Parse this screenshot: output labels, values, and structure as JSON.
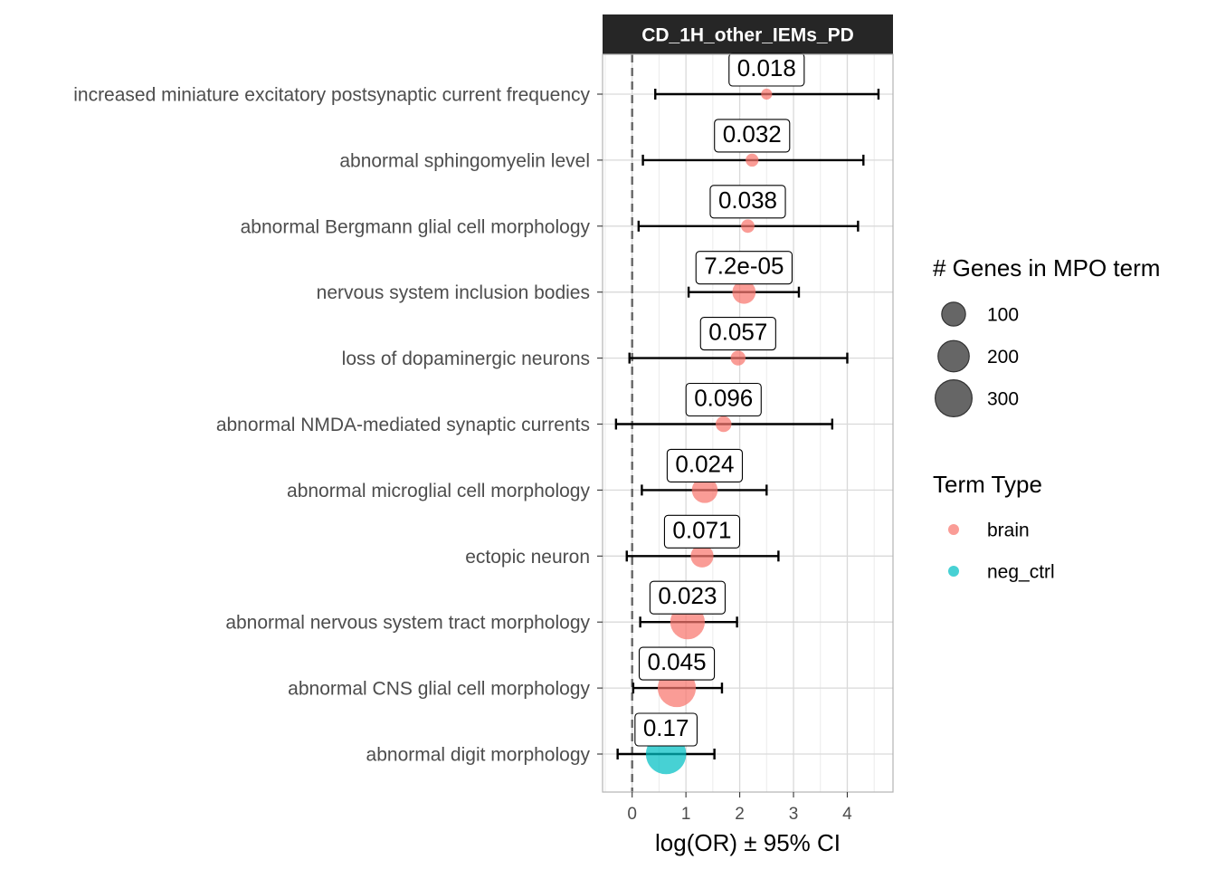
{
  "chart_data": {
    "type": "scatter",
    "facet_title": "CD_1H_other_IEMs_PD",
    "xlabel": "log(OR) ± 95% CI",
    "ylabel": "",
    "xlim": [
      -0.55,
      4.85
    ],
    "xticks": [
      0,
      1,
      2,
      3,
      4
    ],
    "grid": true,
    "reference_line_x": 0,
    "colors": {
      "brain": "#F8766D",
      "neg_ctrl": "#00BFC4"
    },
    "categories": [
      "increased miniature excitatory postsynaptic current frequency",
      "abnormal sphingomyelin level",
      "abnormal Bergmann glial cell morphology",
      "nervous system inclusion bodies",
      "loss of dopaminergic neurons",
      "abnormal NMDA-mediated synaptic currents",
      "abnormal microglial cell morphology",
      "ectopic neuron",
      "abnormal nervous system tract morphology",
      "abnormal CNS glial cell morphology",
      "abnormal digit morphology"
    ],
    "points": [
      {
        "term": "increased miniature excitatory postsynaptic current frequency",
        "logOR": 2.5,
        "ci_low": 0.43,
        "ci_high": 4.58,
        "pval": "0.018",
        "genes": 6,
        "type": "brain"
      },
      {
        "term": "abnormal sphingomyelin level",
        "logOR": 2.23,
        "ci_low": 0.2,
        "ci_high": 4.3,
        "pval": "0.032",
        "genes": 12,
        "type": "brain"
      },
      {
        "term": "abnormal Bergmann glial cell morphology",
        "logOR": 2.15,
        "ci_low": 0.12,
        "ci_high": 4.2,
        "pval": "0.038",
        "genes": 14,
        "type": "brain"
      },
      {
        "term": "nervous system inclusion bodies",
        "logOR": 2.08,
        "ci_low": 1.05,
        "ci_high": 3.1,
        "pval": "7.2e-05",
        "genes": 80,
        "type": "brain"
      },
      {
        "term": "loss of dopaminergic neurons",
        "logOR": 1.97,
        "ci_low": -0.05,
        "ci_high": 4.0,
        "pval": "0.057",
        "genes": 20,
        "type": "brain"
      },
      {
        "term": "abnormal NMDA-mediated synaptic currents",
        "logOR": 1.7,
        "ci_low": -0.3,
        "ci_high": 3.72,
        "pval": "0.096",
        "genes": 25,
        "type": "brain"
      },
      {
        "term": "abnormal microglial cell morphology",
        "logOR": 1.35,
        "ci_low": 0.18,
        "ci_high": 2.5,
        "pval": "0.024",
        "genes": 105,
        "type": "brain"
      },
      {
        "term": "ectopic neuron",
        "logOR": 1.3,
        "ci_low": -0.1,
        "ci_high": 2.72,
        "pval": "0.071",
        "genes": 75,
        "type": "brain"
      },
      {
        "term": "abnormal nervous system tract morphology",
        "logOR": 1.03,
        "ci_low": 0.15,
        "ci_high": 1.95,
        "pval": "0.023",
        "genes": 220,
        "type": "brain"
      },
      {
        "term": "abnormal CNS glial cell morphology",
        "logOR": 0.83,
        "ci_low": 0.02,
        "ci_high": 1.67,
        "pval": "0.045",
        "genes": 280,
        "type": "brain"
      },
      {
        "term": "abnormal digit morphology",
        "logOR": 0.63,
        "ci_low": -0.27,
        "ci_high": 1.53,
        "pval": "0.17",
        "genes": 320,
        "type": "neg_ctrl"
      }
    ]
  },
  "legend": {
    "size_title": "# Genes in MPO term",
    "size_items": [
      {
        "label": "100",
        "value": 100
      },
      {
        "label": "200",
        "value": 200
      },
      {
        "label": "300",
        "value": 300
      }
    ],
    "color_title": "Term Type",
    "color_items": [
      {
        "label": "brain",
        "key": "brain"
      },
      {
        "label": "neg_ctrl",
        "key": "neg_ctrl"
      }
    ]
  }
}
